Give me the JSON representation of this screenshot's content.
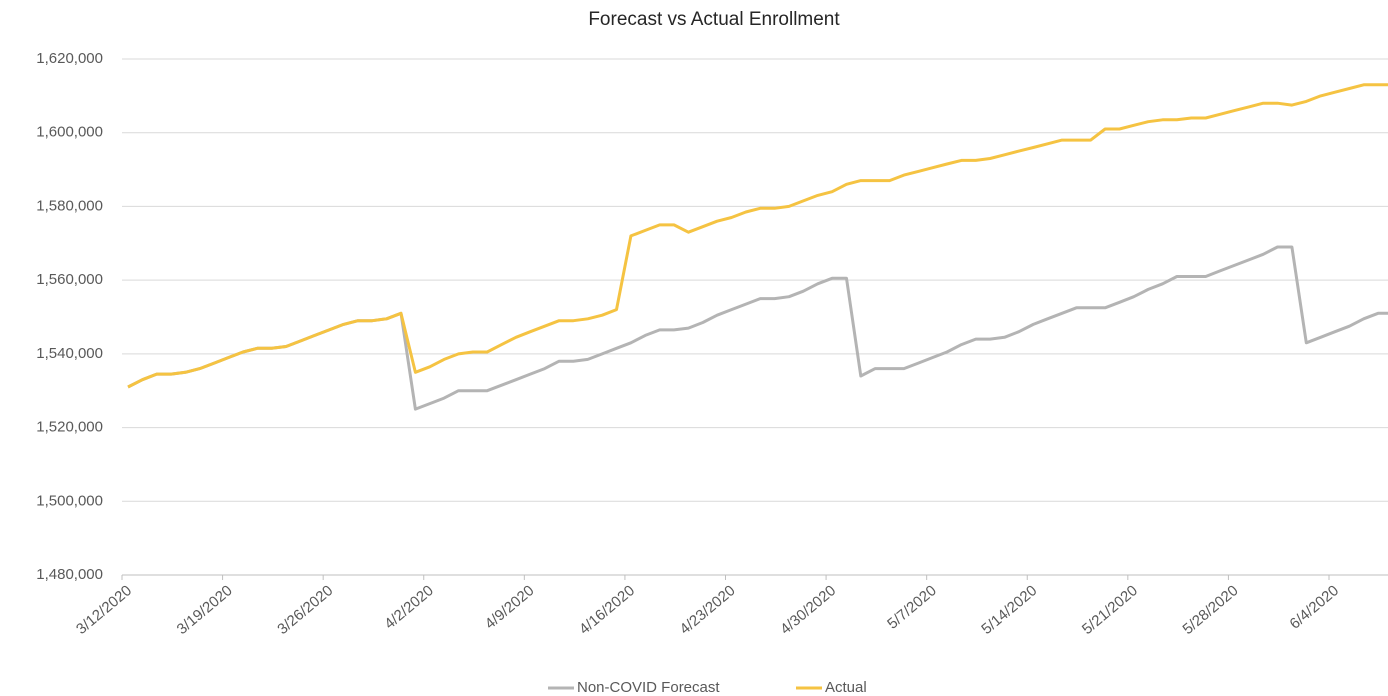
{
  "chart_data": {
    "type": "line",
    "title": "Forecast vs Actual Enrollment",
    "categories": [
      "3/12/2020",
      null,
      null,
      null,
      null,
      null,
      null,
      "3/19/2020",
      null,
      null,
      null,
      null,
      null,
      null,
      "3/26/2020",
      null,
      null,
      null,
      null,
      null,
      null,
      "4/2/2020",
      null,
      null,
      null,
      null,
      null,
      null,
      "4/9/2020",
      null,
      null,
      null,
      null,
      null,
      null,
      "4/16/2020",
      null,
      null,
      null,
      null,
      null,
      null,
      "4/23/2020",
      null,
      null,
      null,
      null,
      null,
      null,
      "4/30/2020",
      null,
      null,
      null,
      null,
      null,
      null,
      "5/7/2020",
      null,
      null,
      null,
      null,
      null,
      null,
      "5/14/2020",
      null,
      null,
      null,
      null,
      null,
      null,
      "5/21/2020",
      null,
      null,
      null,
      null,
      null,
      null,
      "5/28/2020",
      null,
      null,
      null,
      null,
      null,
      null,
      "6/4/2020",
      null,
      null,
      null,
      null
    ],
    "series": [
      {
        "name": "Non-COVID Forecast",
        "color": "#b4b4b4",
        "values": [
          1531000,
          1533000,
          1534500,
          1534500,
          1535000,
          1536000,
          1537500,
          1539000,
          1540500,
          1541500,
          1541500,
          1542000,
          1543500,
          1545000,
          1546500,
          1548000,
          1549000,
          1549000,
          1549500,
          1551000,
          1525000,
          1526500,
          1528000,
          1530000,
          1530000,
          1530000,
          1531500,
          1533000,
          1534500,
          1536000,
          1538000,
          1538000,
          1538500,
          1540000,
          1541500,
          1543000,
          1545000,
          1546500,
          1546500,
          1547000,
          1548500,
          1550500,
          1552000,
          1553500,
          1555000,
          1555000,
          1555500,
          1557000,
          1559000,
          1560500,
          1560500,
          1534000,
          1536000,
          1536000,
          1536000,
          1537500,
          1539000,
          1540500,
          1542500,
          1544000,
          1544000,
          1544500,
          1546000,
          1548000,
          1549500,
          1551000,
          1552500,
          1552500,
          1552500,
          1554000,
          1555500,
          1557500,
          1559000,
          1561000,
          1561000,
          1561000,
          1562500,
          1564000,
          1565500,
          1567000,
          1569000,
          1569000,
          1543000,
          1544500,
          1546000,
          1547500,
          1549500,
          1551000,
          1551000
        ]
      },
      {
        "name": "Actual",
        "color": "#f5c342",
        "values": [
          1531000,
          1533000,
          1534500,
          1534500,
          1535000,
          1536000,
          1537500,
          1539000,
          1540500,
          1541500,
          1541500,
          1542000,
          1543500,
          1545000,
          1546500,
          1548000,
          1549000,
          1549000,
          1549500,
          1551000,
          1535000,
          1536500,
          1538500,
          1540000,
          1540500,
          1540500,
          1542500,
          1544500,
          1546000,
          1547500,
          1549000,
          1549000,
          1549500,
          1550500,
          1552000,
          1572000,
          1573500,
          1575000,
          1575000,
          1573000,
          1574500,
          1576000,
          1577000,
          1578500,
          1579500,
          1579500,
          1580000,
          1581500,
          1583000,
          1584000,
          1586000,
          1587000,
          1587000,
          1587000,
          1588500,
          1589500,
          1590500,
          1591500,
          1592500,
          1592500,
          1593000,
          1594000,
          1595000,
          1596000,
          1597000,
          1598000,
          1598000,
          1598000,
          1601000,
          1601000,
          1602000,
          1603000,
          1603500,
          1603500,
          1604000,
          1604000,
          1605000,
          1606000,
          1607000,
          1608000,
          1608000,
          1607500,
          1608500,
          1610000,
          1611000,
          1612000,
          1613000,
          1613000,
          1613000
        ]
      }
    ],
    "ylim": [
      1480000,
      1620000
    ],
    "yticks": [
      {
        "value": 1480000,
        "label": "1,480,000"
      },
      {
        "value": 1500000,
        "label": "1,500,000"
      },
      {
        "value": 1520000,
        "label": "1,520,000"
      },
      {
        "value": 1540000,
        "label": "1,540,000"
      },
      {
        "value": 1560000,
        "label": "1,560,000"
      },
      {
        "value": 1580000,
        "label": "1,580,000"
      },
      {
        "value": 1600000,
        "label": "1,600,000"
      },
      {
        "value": 1620000,
        "label": "1,620,000"
      }
    ],
    "grid": true,
    "legend": "bottom"
  }
}
